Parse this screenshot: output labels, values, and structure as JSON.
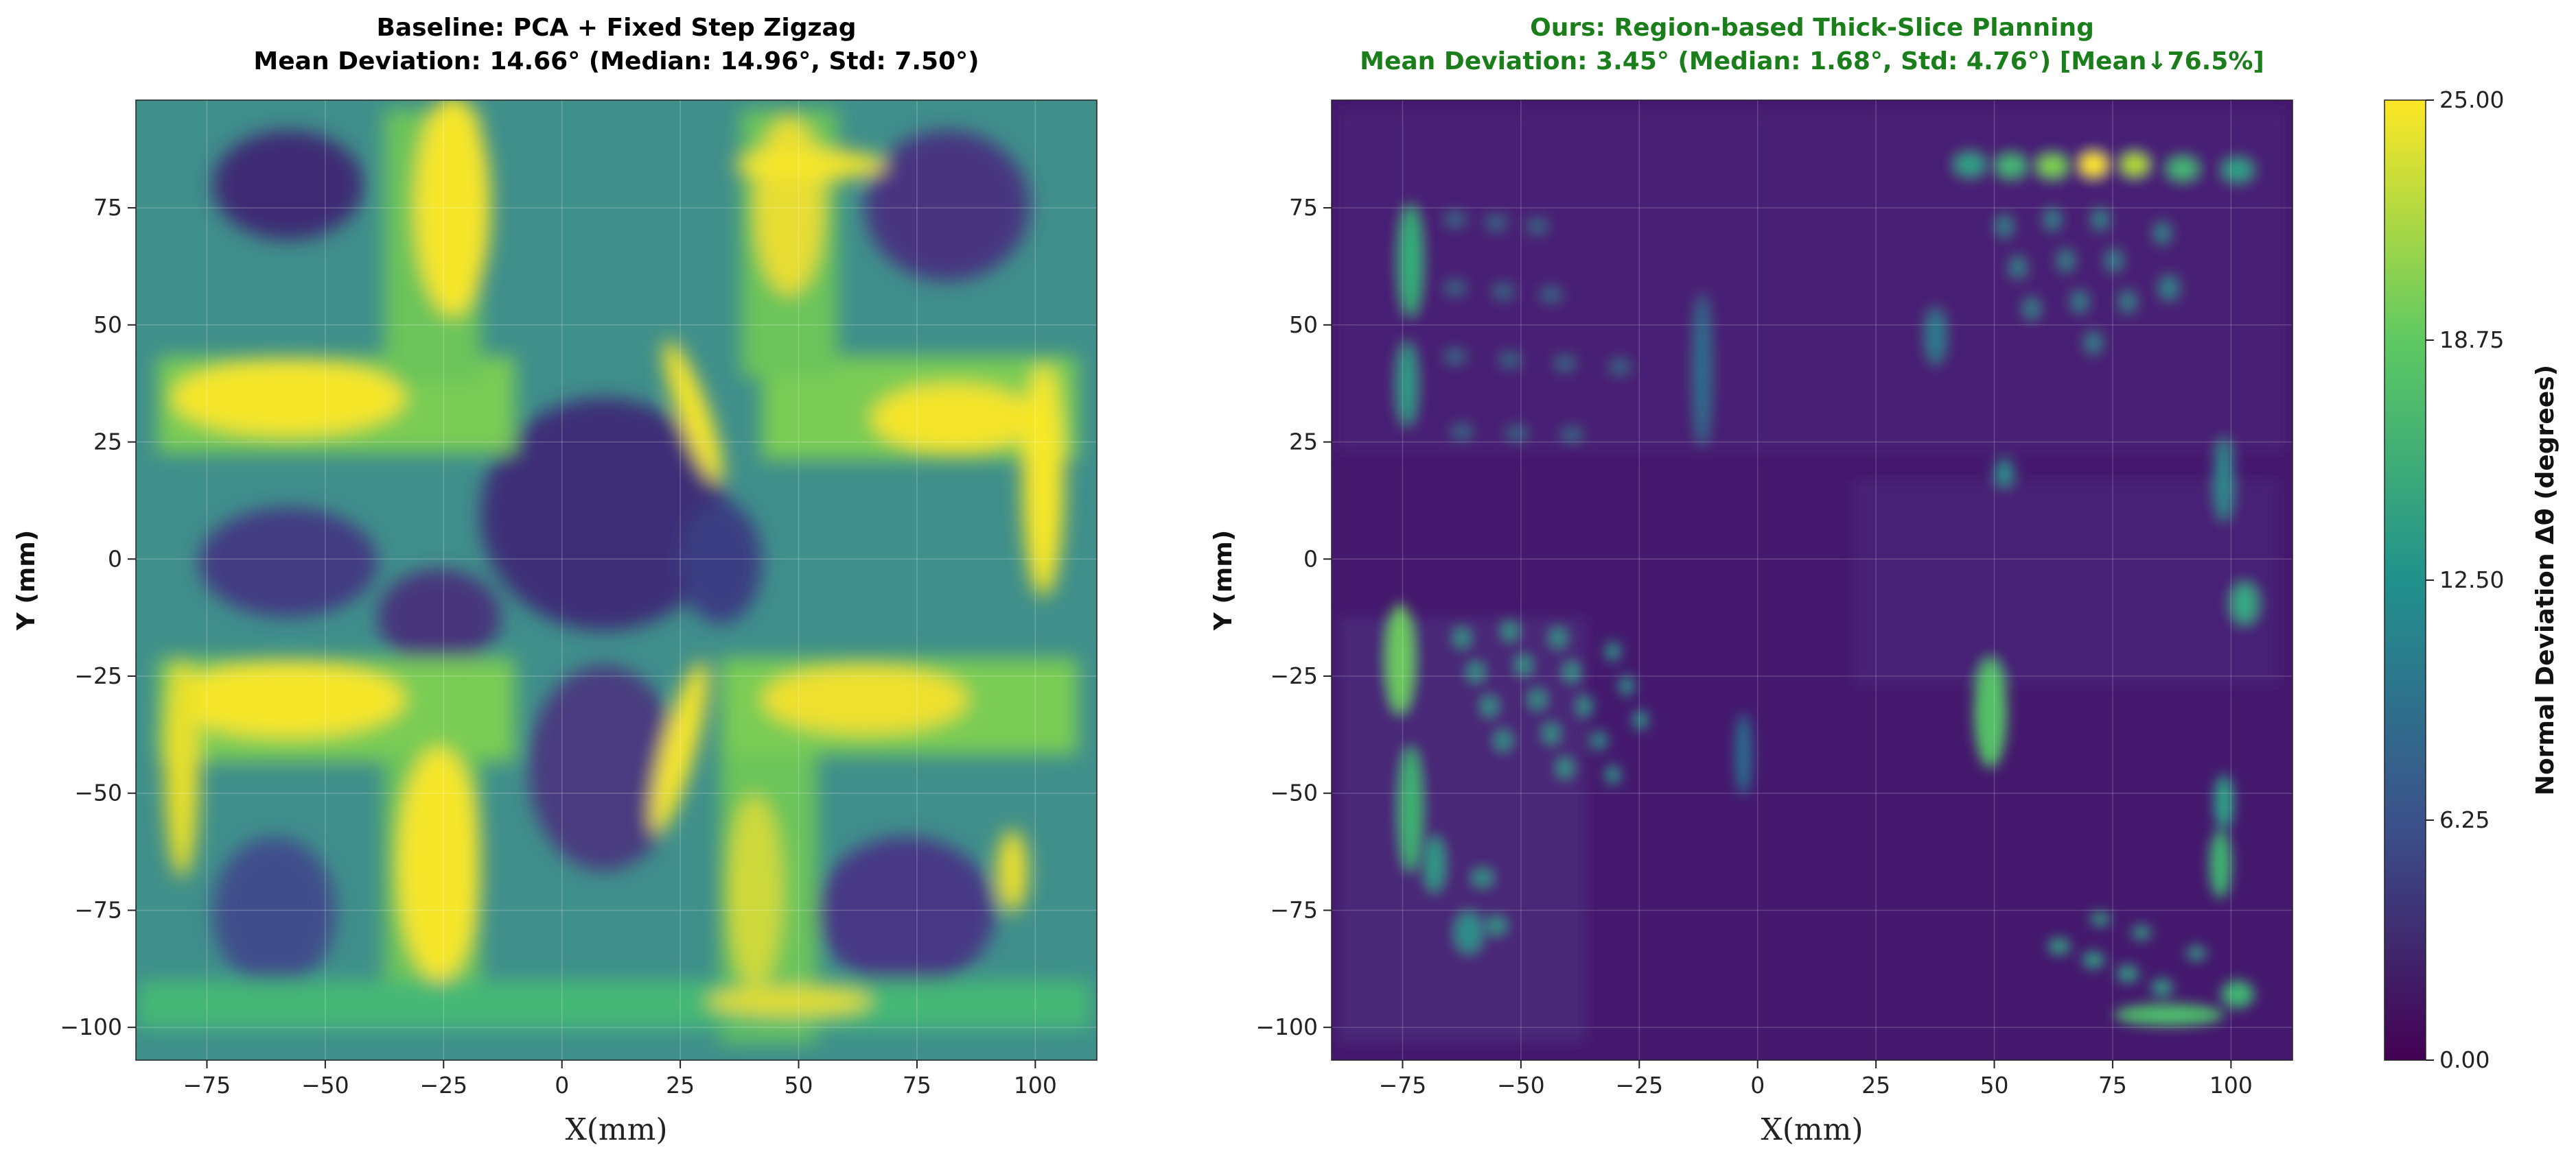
{
  "colors": {
    "baseline_title": "#000000",
    "ours_title": "#1a7f1a",
    "colormap": [
      "#440154",
      "#3b528b",
      "#21918c",
      "#5ec962",
      "#fde725"
    ]
  },
  "chart_data": [
    {
      "type": "heatmap",
      "title": "Baseline: PCA + Fixed Step Zigzag",
      "subtitle": "Mean Deviation: 14.66° (Median: 14.96°, Std: 7.50°)",
      "xlabel": "X(mm)",
      "ylabel": "Y (mm)",
      "xlim": [
        -90,
        113
      ],
      "ylim": [
        -107,
        98
      ],
      "xticks": [
        -75,
        -50,
        -25,
        0,
        25,
        50,
        75,
        100
      ],
      "yticks": [
        75,
        50,
        25,
        0,
        -25,
        -50,
        -75,
        -100
      ],
      "xtick_labels": [
        "−75",
        "−50",
        "−25",
        "0",
        "25",
        "50",
        "75",
        "100"
      ],
      "ytick_labels": [
        "75",
        "50",
        "25",
        "0",
        "−25",
        "−50",
        "−75",
        "−100"
      ],
      "grid": true,
      "stats": {
        "mean": 14.66,
        "median": 14.96,
        "std": 7.5
      }
    },
    {
      "type": "heatmap",
      "title": "Ours: Region-based Thick-Slice Planning",
      "subtitle": "Mean Deviation: 3.45° (Median: 1.68°, Std: 4.76°) [Mean↓76.5%]",
      "xlabel": "X(mm)",
      "ylabel": "Y (mm)",
      "xlim": [
        -90,
        113
      ],
      "ylim": [
        -107,
        98
      ],
      "xticks": [
        -75,
        -50,
        -25,
        0,
        25,
        50,
        75,
        100
      ],
      "yticks": [
        75,
        50,
        25,
        0,
        -25,
        -50,
        -75,
        -100
      ],
      "xtick_labels": [
        "−75",
        "−50",
        "−25",
        "0",
        "25",
        "50",
        "75",
        "100"
      ],
      "ytick_labels": [
        "75",
        "50",
        "25",
        "0",
        "−25",
        "−50",
        "−75",
        "−100"
      ],
      "grid": true,
      "stats": {
        "mean": 3.45,
        "median": 1.68,
        "std": 4.76,
        "mean_reduction_pct": 76.5
      }
    }
  ],
  "colorbar": {
    "label": "Normal Deviation Δθ (degrees)",
    "ticks": [
      0.0,
      6.25,
      12.5,
      18.75,
      25.0
    ],
    "tick_labels": [
      "0.00",
      "6.25",
      "12.50",
      "18.75",
      "25.00"
    ],
    "range": [
      0,
      25
    ]
  }
}
